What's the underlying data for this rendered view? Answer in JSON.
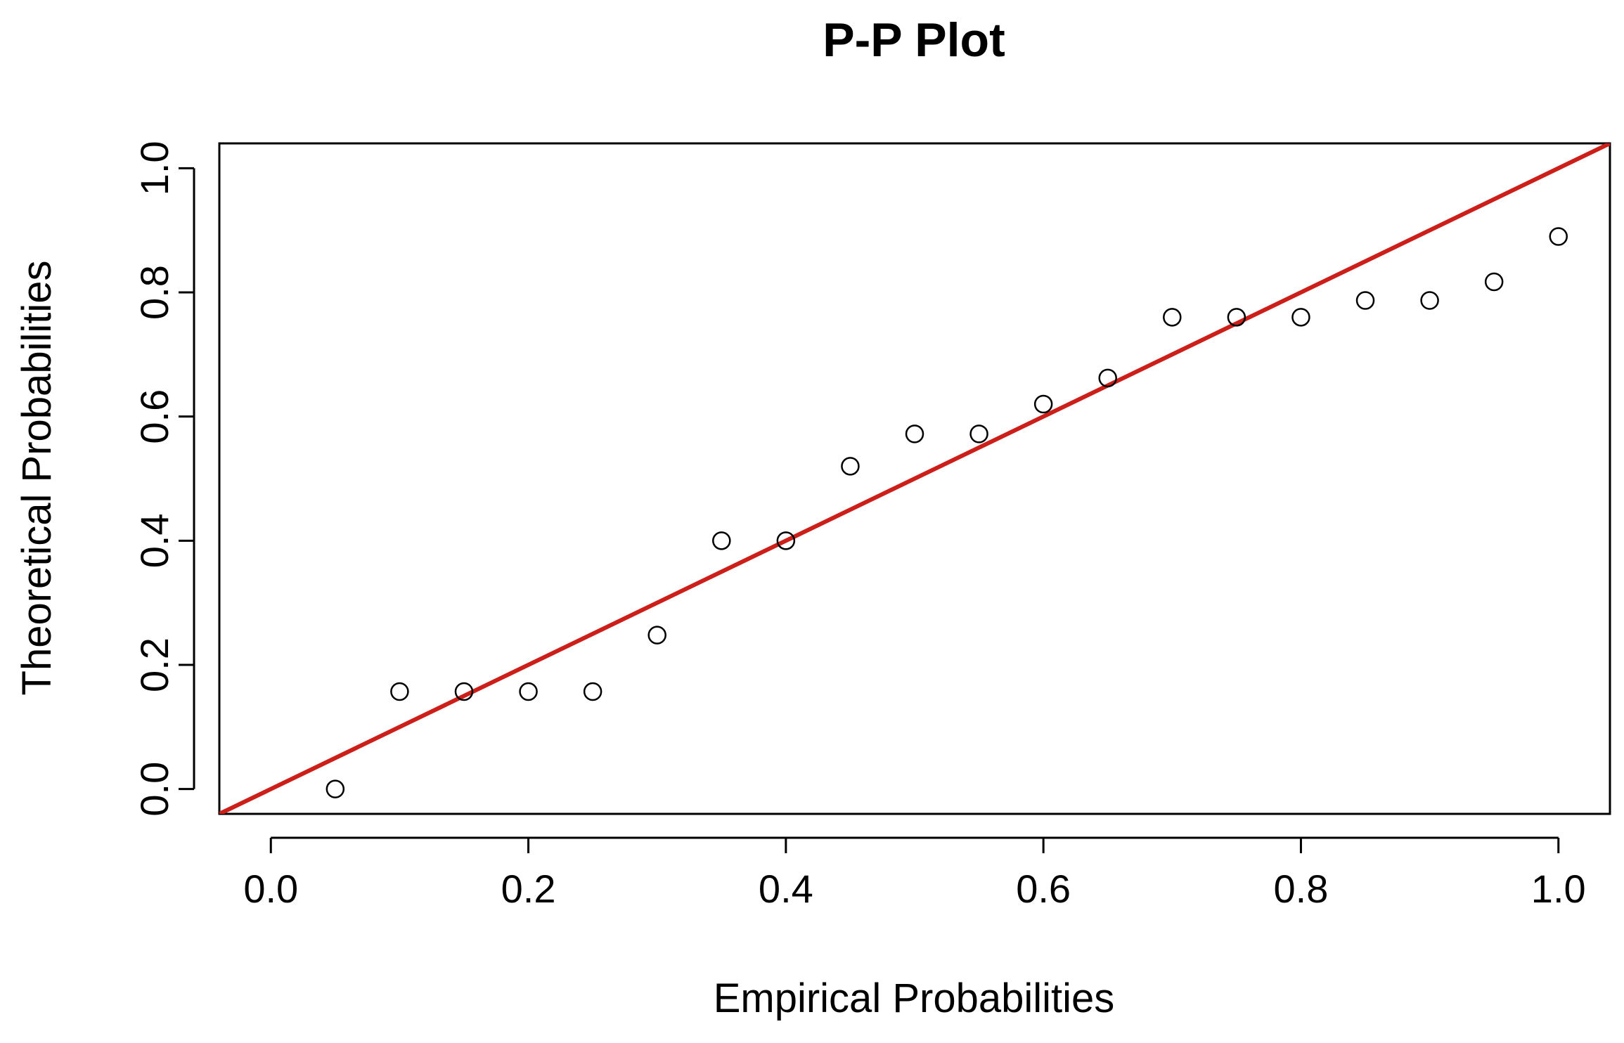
{
  "chart_data": {
    "type": "scatter",
    "title": "P-P Plot",
    "xlabel": "Empirical Probabilities",
    "ylabel": "Theoretical Probabilities",
    "xlim": [
      -0.04,
      1.04
    ],
    "ylim": [
      -0.04,
      1.04
    ],
    "x_ticks": [
      0.0,
      0.2,
      0.4,
      0.6,
      0.8,
      1.0
    ],
    "x_tick_labels": [
      "0.0",
      "0.2",
      "0.4",
      "0.6",
      "0.8",
      "1.0"
    ],
    "y_ticks": [
      0.0,
      0.2,
      0.4,
      0.6,
      0.8,
      1.0
    ],
    "y_tick_labels": [
      "0.0",
      "0.2",
      "0.4",
      "0.6",
      "0.8",
      "1.0"
    ],
    "grid": false,
    "marker": "open-circle",
    "series": [
      {
        "x": [
          0.05,
          0.1,
          0.15,
          0.2,
          0.25,
          0.3,
          0.35,
          0.4,
          0.45,
          0.5,
          0.55,
          0.6,
          0.65,
          0.7,
          0.75,
          0.8,
          0.85,
          0.9,
          0.95,
          1.0
        ],
        "y": [
          0.0,
          0.157,
          0.157,
          0.157,
          0.157,
          0.248,
          0.4,
          0.4,
          0.52,
          0.572,
          0.572,
          0.62,
          0.662,
          0.76,
          0.76,
          0.76,
          0.787,
          0.787,
          0.817,
          0.89
        ]
      }
    ],
    "reference_line": {
      "type": "y=x",
      "color": "#cc1f1a"
    },
    "point_color": "#000000"
  }
}
